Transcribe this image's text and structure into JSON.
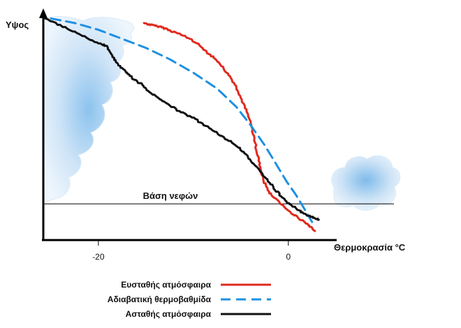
{
  "chart_data": {
    "type": "line",
    "ylabel": "Υψος",
    "xlabel": "Θερμοκρασία °C",
    "xticks": [
      -20,
      0
    ],
    "xlim": [
      -25.8,
      7
    ],
    "ylim": [
      0,
      100
    ],
    "grid": false,
    "annotation": "Βάση νεφών",
    "cloud_base": 16,
    "legend_position": "bottom",
    "series": [
      {
        "name": "Ευσταθής ατμόσφαιρα",
        "color": "#e02a1e",
        "dash": "solid",
        "points": [
          [
            -15.2,
            96
          ],
          [
            -14.3,
            95
          ],
          [
            -13.2,
            94
          ],
          [
            -12.0,
            92
          ],
          [
            -10.8,
            90
          ],
          [
            -9.6,
            87
          ],
          [
            -8.5,
            83
          ],
          [
            -7.4,
            79
          ],
          [
            -6.5,
            74
          ],
          [
            -5.6,
            69
          ],
          [
            -5.0,
            63
          ],
          [
            -4.3,
            56
          ],
          [
            -3.8,
            49
          ],
          [
            -3.4,
            41
          ],
          [
            -3.0,
            33
          ],
          [
            -2.6,
            26
          ],
          [
            -2.0,
            21
          ],
          [
            -1.0,
            17
          ],
          [
            0.0,
            13
          ],
          [
            1.0,
            10
          ],
          [
            2.0,
            7
          ],
          [
            2.8,
            4
          ]
        ]
      },
      {
        "name": "Αδιαβατική θερμοβαθμίδα",
        "color": "#1e90e0",
        "dash": "dashed",
        "points": [
          [
            -25.0,
            98
          ],
          [
            -22.5,
            96
          ],
          [
            -20.0,
            93
          ],
          [
            -17.5,
            89
          ],
          [
            -15.0,
            85
          ],
          [
            -12.5,
            80
          ],
          [
            -10.0,
            74
          ],
          [
            -7.5,
            67
          ],
          [
            -5.5,
            59
          ],
          [
            -4.0,
            51
          ],
          [
            -2.5,
            42
          ],
          [
            -1.2,
            33
          ],
          [
            -0.2,
            26
          ],
          [
            0.8,
            20
          ],
          [
            1.8,
            13
          ],
          [
            2.5,
            8
          ]
        ]
      },
      {
        "name": "Ασταθής ατμόσφαιρα",
        "color": "#111111",
        "dash": "solid",
        "points": [
          [
            -25.6,
            98
          ],
          [
            -23.5,
            94
          ],
          [
            -21.5,
            90
          ],
          [
            -20.0,
            87
          ],
          [
            -19.2,
            86
          ],
          [
            -18.6,
            82
          ],
          [
            -18.0,
            78
          ],
          [
            -17.0,
            74
          ],
          [
            -16.5,
            72
          ],
          [
            -15.5,
            69
          ],
          [
            -14.5,
            65
          ],
          [
            -13.0,
            61
          ],
          [
            -11.5,
            57
          ],
          [
            -10.0,
            54
          ],
          [
            -8.5,
            50
          ],
          [
            -7.0,
            46
          ],
          [
            -5.5,
            42
          ],
          [
            -4.5,
            38
          ],
          [
            -3.5,
            33
          ],
          [
            -2.5,
            28
          ],
          [
            -1.5,
            23
          ],
          [
            -0.5,
            18
          ],
          [
            0.5,
            15
          ],
          [
            1.5,
            12
          ],
          [
            2.5,
            10
          ],
          [
            3.2,
            9
          ]
        ]
      }
    ]
  }
}
